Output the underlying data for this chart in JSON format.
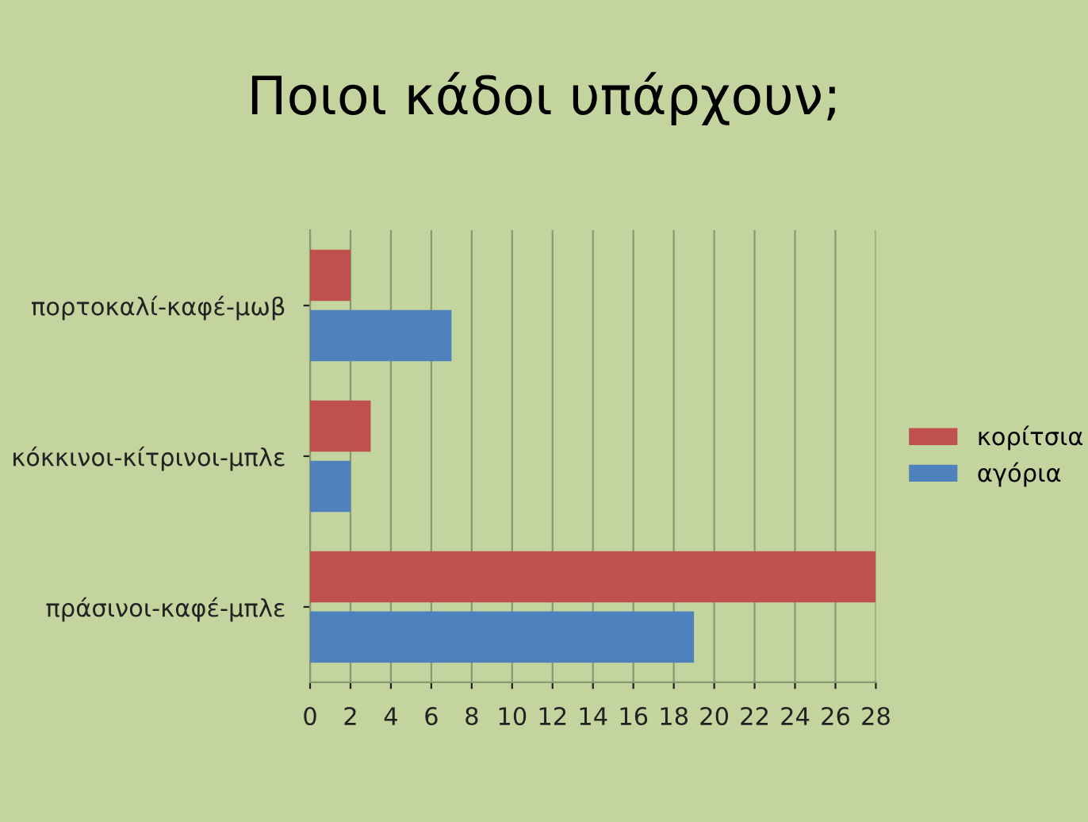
{
  "chart_data": {
    "type": "bar",
    "orientation": "horizontal",
    "title": "Ποιοι κάδοι υπάρχουν;",
    "categories": [
      "πορτοκαλί-καφέ-μωβ",
      "κόκκινοι-κίτρινοι-μπλε",
      "πράσινοι-καφέ-μπλε"
    ],
    "series": [
      {
        "name": "κορίτσια",
        "color": "#c0504d",
        "values": [
          2,
          3,
          28
        ]
      },
      {
        "name": "αγόρια",
        "color": "#4f81bd",
        "values": [
          7,
          2,
          19
        ]
      }
    ],
    "xlim": [
      0,
      28
    ],
    "xticks": [
      0,
      2,
      4,
      6,
      8,
      10,
      12,
      14,
      16,
      18,
      20,
      22,
      24,
      26,
      28
    ],
    "grid": "x",
    "legend": "right"
  }
}
